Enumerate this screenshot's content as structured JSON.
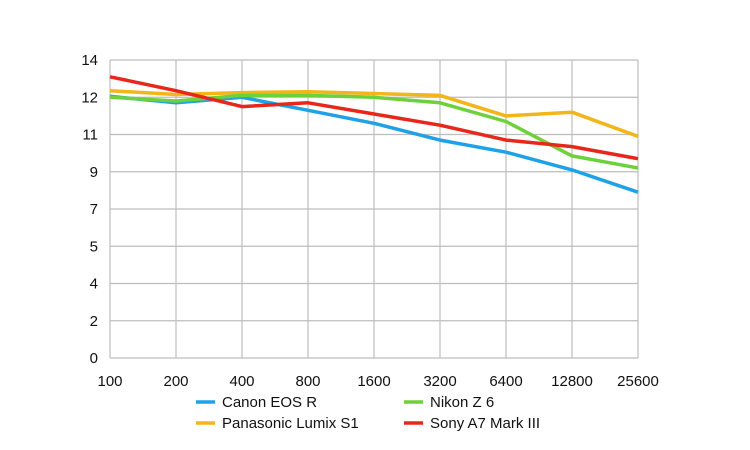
{
  "chart_data": {
    "type": "line",
    "title": "",
    "xlabel": "",
    "ylabel": "",
    "categories": [
      "100",
      "200",
      "400",
      "800",
      "1600",
      "3200",
      "6400",
      "12800",
      "25600"
    ],
    "y_ticks": [
      {
        "value": 0,
        "label": "0"
      },
      {
        "value": 2,
        "label": "2"
      },
      {
        "value": 4,
        "label": "4"
      },
      {
        "value": 5,
        "label": "5"
      },
      {
        "value": 7,
        "label": "7"
      },
      {
        "value": 9,
        "label": "9"
      },
      {
        "value": 11,
        "label": "11"
      },
      {
        "value": 12,
        "label": "12"
      },
      {
        "value": 14,
        "label": "14"
      }
    ],
    "grid": true,
    "legend_position": "bottom",
    "series": [
      {
        "name": "Canon EOS R",
        "color": "#1ea1e6",
        "values": [
          12.05,
          11.85,
          12.0,
          11.65,
          11.3,
          10.7,
          10.05,
          9.1,
          7.9
        ]
      },
      {
        "name": "Panasonic Lumix S1",
        "color": "#f2b619",
        "values": [
          12.35,
          12.15,
          12.25,
          12.3,
          12.2,
          12.1,
          11.5,
          11.6,
          10.9
        ]
      },
      {
        "name": "Nikon Z 6",
        "color": "#6dd13b",
        "values": [
          12.0,
          11.9,
          12.1,
          12.1,
          12.0,
          11.85,
          11.35,
          9.85,
          9.2
        ]
      },
      {
        "name": "Sony A7 Mark III",
        "color": "#e8261a",
        "values": [
          13.1,
          12.35,
          11.75,
          11.85,
          11.55,
          11.25,
          10.7,
          10.35,
          9.7
        ]
      }
    ]
  }
}
